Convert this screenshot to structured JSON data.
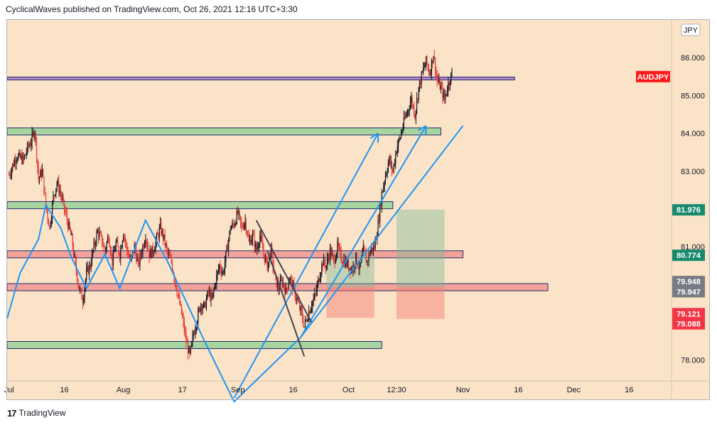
{
  "header": {
    "publisher_line": "CyclicalWaves published on TradingView.com, Oct 26, 2021 12:16 UTC+3:30"
  },
  "footer": {
    "brand": "TradingView"
  },
  "colors": {
    "background": "#fbe3c8",
    "green_zone": "#a8d4a0",
    "red_zone": "#f3a29a",
    "purple_line": "#b58bc9",
    "blue": "#2196f3",
    "channel": "#434651",
    "bull_candle": "#131722",
    "bear_candle": "#e53935",
    "badge_red": "#ff1a1a",
    "badge_green": "#178a6e",
    "badge_grey": "#787b86",
    "badge_pink": "#f23645"
  },
  "chart_data": {
    "type": "candlestick",
    "symbol": "AUDJPY",
    "currency": "JPY",
    "ylim": [
      77.45,
      87.0
    ],
    "y_ticks": [
      {
        "label": "86.000",
        "value": 86.0
      },
      {
        "label": "85.000",
        "value": 85.0
      },
      {
        "label": "84.000",
        "value": 84.0
      },
      {
        "label": "83.000",
        "value": 83.0
      },
      {
        "label": "81.000",
        "value": 81.0
      },
      {
        "label": "78.000",
        "value": 78.0
      }
    ],
    "x_ticks": [
      {
        "label": "Jul",
        "day": 0
      },
      {
        "label": "16",
        "day": 15
      },
      {
        "label": "Aug",
        "day": 31
      },
      {
        "label": "17",
        "day": 47
      },
      {
        "label": "Sep",
        "day": 62
      },
      {
        "label": "16",
        "day": 77
      },
      {
        "label": "Oct",
        "day": 92
      },
      {
        "label": "12:30",
        "day": 105
      },
      {
        "label": "Nov",
        "day": 123
      },
      {
        "label": "16",
        "day": 138
      },
      {
        "label": "Dec",
        "day": 153
      },
      {
        "label": "16",
        "day": 168
      }
    ],
    "xlim": [
      -0.5,
      179.5
    ],
    "price_path": [
      [
        0,
        82.9
      ],
      [
        2,
        83.4
      ],
      [
        4,
        83.3
      ],
      [
        5,
        83.6
      ],
      [
        6,
        83.8
      ],
      [
        7,
        84.1
      ],
      [
        8,
        82.8
      ],
      [
        9,
        83.0
      ],
      [
        10,
        82.1
      ],
      [
        11,
        81.5
      ],
      [
        12,
        82.3
      ],
      [
        13,
        82.7
      ],
      [
        14,
        82.4
      ],
      [
        15,
        82.0
      ],
      [
        16,
        81.6
      ],
      [
        17,
        81.2
      ],
      [
        18,
        80.5
      ],
      [
        19,
        79.9
      ],
      [
        20,
        79.6
      ],
      [
        21,
        80.3
      ],
      [
        22,
        80.5
      ],
      [
        23,
        81.0
      ],
      [
        24,
        81.4
      ],
      [
        25,
        81.2
      ],
      [
        26,
        80.9
      ],
      [
        27,
        81.3
      ],
      [
        28,
        80.6
      ],
      [
        29,
        81.1
      ],
      [
        30,
        80.8
      ],
      [
        31,
        81.4
      ],
      [
        32,
        80.9
      ],
      [
        33,
        80.6
      ],
      [
        34,
        81.0
      ],
      [
        35,
        80.5
      ],
      [
        36,
        80.9
      ],
      [
        37,
        81.3
      ],
      [
        38,
        80.8
      ],
      [
        39,
        80.9
      ],
      [
        40,
        81.2
      ],
      [
        41,
        81.5
      ],
      [
        42,
        81.2
      ],
      [
        43,
        80.8
      ],
      [
        44,
        80.6
      ],
      [
        45,
        80.1
      ],
      [
        46,
        79.6
      ],
      [
        47,
        79.1
      ],
      [
        48,
        78.5
      ],
      [
        49,
        78.1
      ],
      [
        50,
        78.7
      ],
      [
        51,
        79.1
      ],
      [
        52,
        79.5
      ],
      [
        53,
        79.4
      ],
      [
        54,
        79.8
      ],
      [
        55,
        79.6
      ],
      [
        56,
        80.1
      ],
      [
        57,
        80.5
      ],
      [
        58,
        80.3
      ],
      [
        59,
        80.9
      ],
      [
        60,
        81.5
      ],
      [
        61,
        81.6
      ],
      [
        62,
        81.9
      ],
      [
        63,
        81.5
      ],
      [
        64,
        81.7
      ],
      [
        65,
        81.1
      ],
      [
        66,
        81.3
      ],
      [
        67,
        80.9
      ],
      [
        68,
        81.3
      ],
      [
        69,
        80.8
      ],
      [
        70,
        80.5
      ],
      [
        71,
        80.9
      ],
      [
        72,
        80.2
      ],
      [
        73,
        79.9
      ],
      [
        74,
        80.1
      ],
      [
        75,
        79.8
      ],
      [
        76,
        80.2
      ],
      [
        77,
        79.9
      ],
      [
        78,
        79.6
      ],
      [
        79,
        79.3
      ],
      [
        80,
        78.9
      ],
      [
        81,
        79.2
      ],
      [
        82,
        79.5
      ],
      [
        83,
        79.7
      ],
      [
        84,
        80.2
      ],
      [
        85,
        80.6
      ],
      [
        86,
        80.5
      ],
      [
        87,
        80.9
      ],
      [
        88,
        80.6
      ],
      [
        89,
        81.0
      ],
      [
        90,
        80.7
      ],
      [
        91,
        80.6
      ],
      [
        92,
        80.5
      ],
      [
        93,
        80.4
      ],
      [
        94,
        80.7
      ],
      [
        95,
        80.4
      ],
      [
        96,
        80.9
      ],
      [
        97,
        80.6
      ],
      [
        98,
        80.9
      ],
      [
        99,
        81.0
      ],
      [
        100,
        81.6
      ],
      [
        101,
        82.4
      ],
      [
        102,
        82.9
      ],
      [
        103,
        83.3
      ],
      [
        104,
        83.0
      ],
      [
        105,
        83.6
      ],
      [
        106,
        83.9
      ],
      [
        107,
        84.3
      ],
      [
        108,
        84.6
      ],
      [
        109,
        84.9
      ],
      [
        110,
        84.5
      ],
      [
        111,
        85.2
      ],
      [
        112,
        85.6
      ],
      [
        113,
        85.9
      ],
      [
        114,
        85.6
      ],
      [
        115,
        86.1
      ],
      [
        116,
        85.4
      ],
      [
        117,
        85.2
      ],
      [
        118,
        84.9
      ],
      [
        119,
        85.3
      ],
      [
        120,
        85.6
      ]
    ],
    "horizontal_zones": [
      {
        "kind": "purple",
        "y": 85.45,
        "x_start": -0.5,
        "x_end": 137
      },
      {
        "kind": "green",
        "y": 84.05,
        "x_start": -0.5,
        "x_end": 117
      },
      {
        "kind": "green",
        "y": 82.1,
        "x_start": -0.5,
        "x_end": 104
      },
      {
        "kind": "red",
        "y": 80.8,
        "x_start": -0.5,
        "x_end": 123
      },
      {
        "kind": "red",
        "y": 79.93,
        "x_start": -0.5,
        "x_end": 146
      },
      {
        "kind": "green",
        "y": 78.4,
        "x_start": -0.5,
        "x_end": 101
      }
    ],
    "wave_path": [
      [
        -0.5,
        79.1
      ],
      [
        3,
        80.3
      ],
      [
        8,
        81.2
      ],
      [
        10,
        82.1
      ],
      [
        14,
        81.5
      ],
      [
        17,
        80.7
      ],
      [
        21,
        79.9
      ],
      [
        26,
        80.8
      ],
      [
        30,
        79.9
      ],
      [
        37,
        81.7
      ],
      [
        43,
        80.6
      ],
      [
        53,
        78.5
      ],
      [
        61,
        76.9
      ],
      [
        79,
        78.6
      ],
      [
        123,
        84.2
      ]
    ],
    "wave_arrow_1": [
      [
        61,
        77.0
      ],
      [
        100,
        84.0
      ]
    ],
    "wave_arrow_2": [
      [
        79,
        78.6
      ],
      [
        113,
        84.2
      ]
    ],
    "channel_lines": [
      [
        [
          67,
          81.7
        ],
        [
          82,
          79.0
        ]
      ],
      [
        [
          70,
          80.9
        ],
        [
          80,
          78.1
        ]
      ]
    ],
    "positions": [
      {
        "x_start": 86,
        "x_end": 99,
        "entry": 79.93,
        "target": 80.85,
        "stop": 79.12
      },
      {
        "x_start": 105,
        "x_end": 118,
        "entry": 79.93,
        "target": 81.98,
        "stop": 79.09
      }
    ],
    "price_badges": [
      {
        "text": "AUDJPY",
        "y": 85.5,
        "style": "red-label"
      },
      {
        "text": "81.976",
        "y": 81.976,
        "style": "green"
      },
      {
        "text": "80.774",
        "y": 80.774,
        "style": "green"
      },
      {
        "text": "79.948",
        "y": 80.08,
        "style": "grey"
      },
      {
        "text": "79.947",
        "y": 79.81,
        "style": "grey"
      },
      {
        "text": "79.121",
        "y": 79.23,
        "style": "pink"
      },
      {
        "text": "79.088",
        "y": 78.96,
        "style": "pink"
      }
    ]
  }
}
